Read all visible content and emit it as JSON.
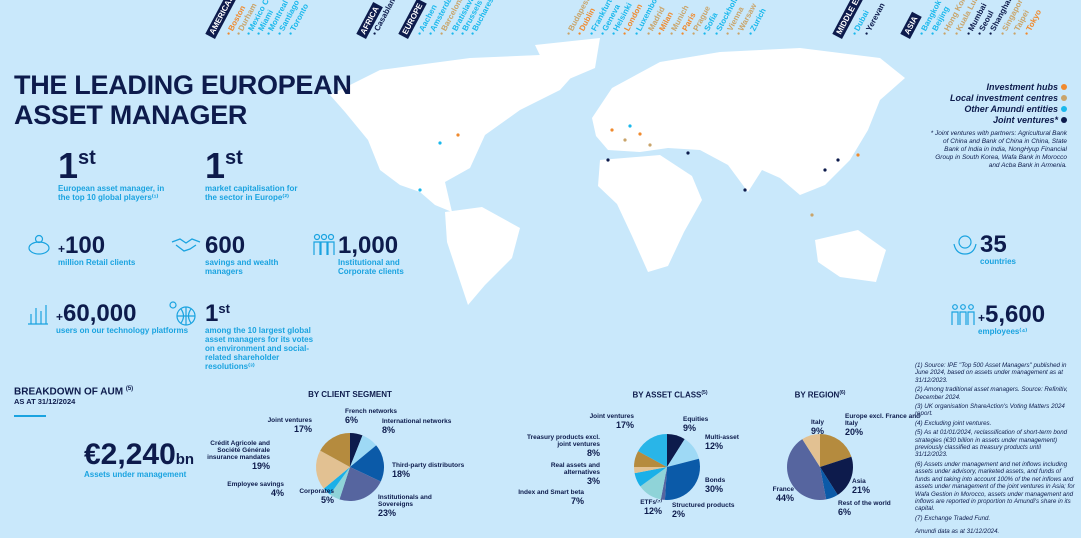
{
  "colors": {
    "navy": "#0d1b4c",
    "accent": "#1aa3e0",
    "hub": "#f08a2e",
    "local": "#c9a46a",
    "other": "#1ab8ec",
    "jv": "#0d1b4c"
  },
  "title": [
    "THE LEADING EUROPEAN",
    "ASSET MANAGER"
  ],
  "locations": [
    {
      "region": "AMERICAS",
      "cities": [
        [
          "Boston",
          "hub"
        ],
        [
          "Durham",
          "local"
        ],
        [
          "Mexico City",
          "other"
        ],
        [
          "Miami",
          "other"
        ],
        [
          "Montreal",
          "other"
        ],
        [
          "Santiago",
          "other"
        ],
        [
          "Toronto",
          "other"
        ]
      ]
    },
    {
      "region": "AFRICA",
      "cities": [
        [
          "Casablanca",
          "jv"
        ]
      ]
    },
    {
      "region": "EUROPE",
      "cities": [
        [
          "Aachen",
          "other"
        ],
        [
          "Amsterdam",
          "other"
        ],
        [
          "Barcelona",
          "local"
        ],
        [
          "Bratislava",
          "other"
        ],
        [
          "Brussels",
          "other"
        ],
        [
          "Bucharest",
          "other"
        ],
        [
          "Budapest",
          "local"
        ],
        [
          "Dublin",
          "hub"
        ],
        [
          "Frankfurt",
          "other"
        ],
        [
          "Geneva",
          "other"
        ],
        [
          "Helsinki",
          "other"
        ],
        [
          "London",
          "hub"
        ],
        [
          "Luxembourg",
          "other"
        ],
        [
          "Madrid",
          "local"
        ],
        [
          "Milan",
          "hub"
        ],
        [
          "Munich",
          "local"
        ],
        [
          "Paris",
          "hub"
        ],
        [
          "Prague",
          "local"
        ],
        [
          "Sofia",
          "other"
        ],
        [
          "Stockholm",
          "other"
        ],
        [
          "Vienna",
          "local"
        ],
        [
          "Warsaw",
          "local"
        ],
        [
          "Zurich",
          "other"
        ]
      ]
    },
    {
      "region": "MIDDLE EAST",
      "cities": [
        [
          "Dubai",
          "other"
        ],
        [
          "Yerevan",
          "jv"
        ]
      ]
    },
    {
      "region": "ASIA",
      "cities": [
        [
          "Bangkok",
          "other"
        ],
        [
          "Beijing",
          "other"
        ],
        [
          "Hong Kong",
          "local"
        ],
        [
          "Kuala Lumpur",
          "local"
        ],
        [
          "Mumbai",
          "jv"
        ],
        [
          "Seoul",
          "jv"
        ],
        [
          "Shanghai",
          "jv"
        ],
        [
          "Singapore",
          "local"
        ],
        [
          "Taipei",
          "local"
        ],
        [
          "Tokyo",
          "hub"
        ]
      ]
    }
  ],
  "legend": [
    {
      "label": "Investment hubs",
      "type": "hub"
    },
    {
      "label": "Local investment centres",
      "type": "local"
    },
    {
      "label": "Other Amundi entities",
      "type": "other"
    },
    {
      "label": "Joint ventures*",
      "type": "jv"
    }
  ],
  "jv_note": "* Joint ventures with partners: Agricultural Bank of China and Bank of China in China, State Bank of India in India, NongHyup Financial Group in South Korea, Wafa Bank in Morocco and Acba Bank in Armenia.",
  "stats": {
    "european": {
      "value": "1",
      "sup": "st",
      "text": "European asset manager, in the top 10 global players⁽¹⁾"
    },
    "market": {
      "value": "1",
      "sup": "st",
      "text": "market capitalisation for the sector in Europe⁽²⁾"
    },
    "retail": {
      "plus": "+",
      "value": "100",
      "text": "million Retail clients",
      "icon": "piggy-bank-icon"
    },
    "savings": {
      "value": "600",
      "text": "savings and wealth managers",
      "icon": "handshake-icon"
    },
    "institutional": {
      "value": "1,000",
      "text": "Institutional and Corporate clients",
      "icon": "people-icon"
    },
    "users": {
      "plus": "+",
      "value": "60,000",
      "text": "users on our technology platforms",
      "icon": "chart-icon"
    },
    "votes": {
      "value": "1",
      "sup": "st",
      "text": "among the 10 largest global asset managers for its votes on environment and social-related shareholder resolutions⁽³⁾",
      "icon": "globe-icon"
    },
    "countries": {
      "value": "35",
      "text": "countries",
      "icon": "globe-hands-icon"
    },
    "employees": {
      "plus": "+",
      "value": "5,600",
      "text": "employees⁽⁴⁾",
      "icon": "employees-icon"
    }
  },
  "aum": {
    "heading": "BREAKDOWN OF AUM",
    "heading_sup": "(5)",
    "date": "AS AT 31/12/2024",
    "value": "€2,240",
    "unit": "bn",
    "caption": "Assets under management"
  },
  "chart_data": [
    {
      "type": "pie",
      "title": "BY CLIENT SEGMENT",
      "categories": [
        "French networks",
        "International networks",
        "Third-party distributors",
        "Institutionals and Sovereigns",
        "Corporates",
        "Employee savings",
        "Crédit Agricole and Société Générale insurance mandates",
        "Joint ventures"
      ],
      "values": [
        6,
        8,
        18,
        23,
        5,
        4,
        19,
        17
      ],
      "colors": [
        "#0d1b4c",
        "#9ed9f5",
        "#0b5aa8",
        "#56659f",
        "#8fd3d8",
        "#1ab0e8",
        "#e2c192",
        "#b58b3e"
      ]
    },
    {
      "type": "pie",
      "title": "BY ASSET CLASS",
      "title_sup": "(5)",
      "categories": [
        "Equities",
        "Multi-asset",
        "Bonds",
        "Structured products",
        "ETFs⁽⁷⁾",
        "Index and Smart beta",
        "Real assets and alternatives",
        "Treasury products excl. joint ventures",
        "Joint ventures"
      ],
      "values": [
        9,
        12,
        30,
        2,
        12,
        7,
        3,
        8,
        17
      ],
      "colors": [
        "#0d1b4c",
        "#9ed9f5",
        "#0b5aa8",
        "#56659f",
        "#8fd3d8",
        "#1ab0e8",
        "#e2c192",
        "#b58b3e",
        "#29b5e8"
      ]
    },
    {
      "type": "pie",
      "title": "BY REGION",
      "title_sup": "(6)",
      "categories": [
        "Europe excl. France and Italy",
        "Asia",
        "Rest of the world",
        "France",
        "Italy"
      ],
      "values": [
        20,
        21,
        6,
        44,
        9
      ],
      "colors": [
        "#b58b3e",
        "#0d1b4c",
        "#0b5aa8",
        "#56659f",
        "#e2c192"
      ]
    }
  ],
  "footnotes": [
    "(1) Source: IPE \"Top 500 Asset Managers\" published in June 2024, based on assets under management as at 31/12/2023.",
    "(2) Among traditional asset managers. Source: Refinitiv, December 2024.",
    "(3) UK organisation ShareAction's Voting Matters 2024 report.",
    "(4) Excluding joint ventures.",
    "(5) As at 01/01/2024, reclassification of short-term bond strategies (€30 billion in assets under management) previously classified as treasury products until 31/12/2023.",
    "(6) Assets under management and net inflows including assets under advisory, marketed assets, and funds of funds and taking into account 100% of the net inflows and assets under management of the joint ventures in Asia; for Wafa Gestion in Morocco, assets under management and inflows are reported in proportion to Amundi's share in its capital.",
    "(7) Exchange Traded Fund.",
    "Amundi data as at 31/12/2024."
  ]
}
